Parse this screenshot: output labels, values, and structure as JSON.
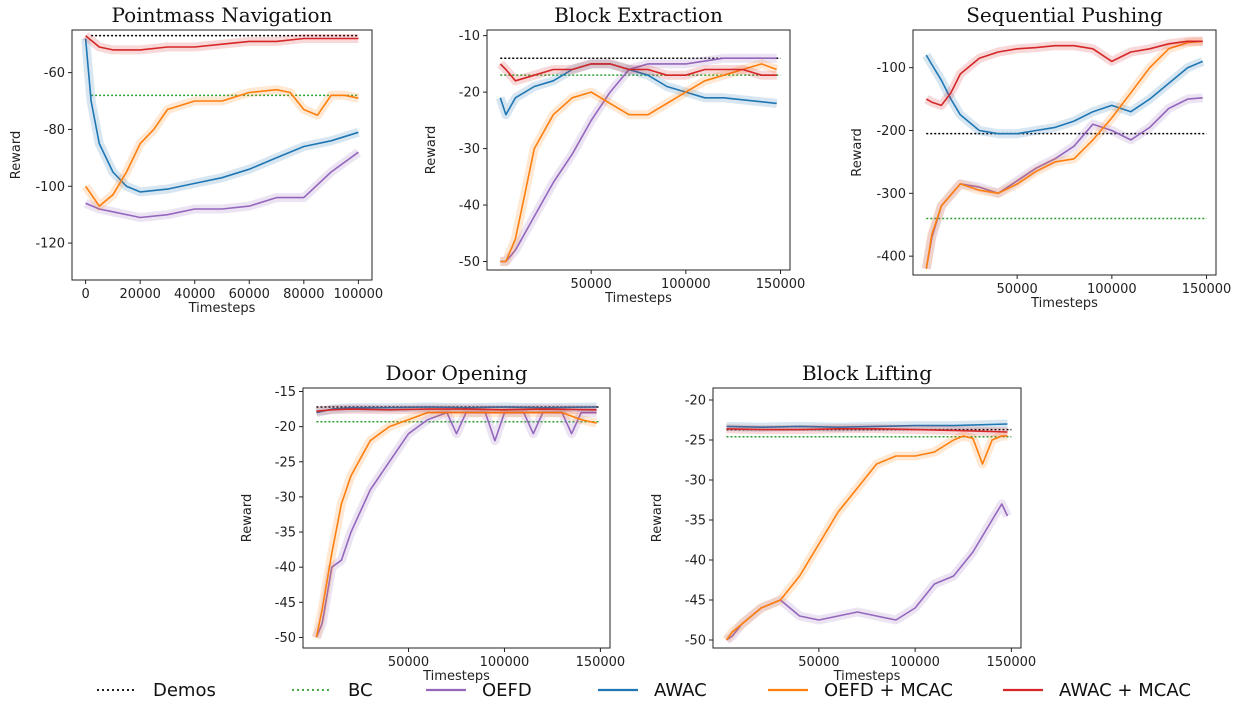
{
  "colors": {
    "Demos": "#000000",
    "BC": "#2ca02c",
    "OEFD": "#9467bd",
    "AWAC": "#1f77b4",
    "OEFD + MCAC": "#ff7f0e",
    "AWAC + MCAC": "#d62728"
  },
  "legend": {
    "position": "bottom",
    "items": [
      {
        "label": "Demos",
        "style": "dotted"
      },
      {
        "label": "BC",
        "style": "dotted"
      },
      {
        "label": "OEFD",
        "style": "solid"
      },
      {
        "label": "AWAC",
        "style": "solid"
      },
      {
        "label": "OEFD + MCAC",
        "style": "solid"
      },
      {
        "label": "AWAC + MCAC",
        "style": "solid"
      }
    ]
  },
  "chart_data": [
    {
      "type": "line",
      "title": "Pointmass Navigation",
      "xlabel": "Timesteps",
      "ylabel": "Reward",
      "xlim": [
        -5000,
        105000
      ],
      "ylim": [
        -133,
        -45
      ],
      "xticks": [
        0,
        20000,
        40000,
        60000,
        80000,
        100000
      ],
      "xticklabels": [
        "0",
        "20000",
        "40000",
        "60000",
        "80000",
        "100000"
      ],
      "yticks": [
        -60,
        -80,
        -100,
        -120
      ],
      "yticklabels": [
        "-60",
        "-80",
        "-100",
        "-120"
      ],
      "hlines": [
        {
          "name": "Demos",
          "y": -47
        },
        {
          "name": "BC",
          "y": -68
        }
      ],
      "series": [
        {
          "name": "OEFD",
          "x": [
            0,
            5000,
            10000,
            20000,
            30000,
            40000,
            50000,
            60000,
            70000,
            80000,
            90000,
            100000
          ],
          "y": [
            -106,
            -108,
            -109,
            -111,
            -110,
            -108,
            -108,
            -107,
            -104,
            -104,
            -95,
            -88
          ]
        },
        {
          "name": "AWAC",
          "x": [
            0,
            2000,
            5000,
            10000,
            15000,
            20000,
            30000,
            40000,
            50000,
            60000,
            70000,
            80000,
            90000,
            100000
          ],
          "y": [
            -48,
            -70,
            -85,
            -95,
            -100,
            -102,
            -101,
            -99,
            -97,
            -94,
            -90,
            -86,
            -84,
            -81
          ]
        },
        {
          "name": "OEFD + MCAC",
          "x": [
            0,
            5000,
            10000,
            15000,
            20000,
            25000,
            30000,
            40000,
            50000,
            60000,
            70000,
            75000,
            80000,
            85000,
            90000,
            95000,
            100000
          ],
          "y": [
            -100,
            -107,
            -103,
            -95,
            -85,
            -80,
            -73,
            -70,
            -70,
            -67,
            -66,
            -67,
            -73,
            -75,
            -68,
            -68,
            -69
          ]
        },
        {
          "name": "AWAC + MCAC",
          "x": [
            0,
            5000,
            10000,
            20000,
            30000,
            40000,
            50000,
            60000,
            70000,
            80000,
            90000,
            100000
          ],
          "y": [
            -47,
            -51,
            -52,
            -52,
            -51,
            -51,
            -50,
            -49,
            -49,
            -48,
            -48,
            -48
          ]
        }
      ]
    },
    {
      "type": "line",
      "title": "Block Extraction",
      "xlabel": "Timesteps",
      "ylabel": "Reward",
      "xlim": [
        -5000,
        155000
      ],
      "ylim": [
        -51.5,
        -9
      ],
      "xticks": [
        50000,
        100000,
        150000
      ],
      "xticklabels": [
        "50000",
        "100000",
        "150000"
      ],
      "yticks": [
        -10,
        -20,
        -30,
        -40,
        -50
      ],
      "yticklabels": [
        "-10",
        "-20",
        "-30",
        "-40",
        "-50"
      ],
      "hlines": [
        {
          "name": "Demos",
          "y": -14
        },
        {
          "name": "BC",
          "y": -17
        }
      ],
      "series": [
        {
          "name": "OEFD",
          "x": [
            2000,
            5000,
            10000,
            20000,
            30000,
            40000,
            50000,
            60000,
            70000,
            80000,
            90000,
            100000,
            120000,
            148000
          ],
          "y": [
            -50,
            -50,
            -48,
            -42,
            -36,
            -31,
            -25,
            -20,
            -16,
            -15,
            -15,
            -15,
            -14,
            -14
          ]
        },
        {
          "name": "AWAC",
          "x": [
            2000,
            5000,
            10000,
            20000,
            30000,
            40000,
            50000,
            60000,
            70000,
            80000,
            90000,
            100000,
            110000,
            120000,
            148000
          ],
          "y": [
            -21,
            -24,
            -21,
            -19,
            -18,
            -16,
            -15,
            -15,
            -16,
            -17,
            -19,
            -20,
            -21,
            -21,
            -22
          ]
        },
        {
          "name": "OEFD + MCAC",
          "x": [
            2000,
            5000,
            10000,
            15000,
            20000,
            30000,
            40000,
            50000,
            60000,
            70000,
            80000,
            90000,
            100000,
            110000,
            120000,
            130000,
            140000,
            148000
          ],
          "y": [
            -50,
            -50,
            -46,
            -38,
            -30,
            -24,
            -21,
            -20,
            -22,
            -24,
            -24,
            -22,
            -20,
            -18,
            -17,
            -16,
            -15,
            -16
          ]
        },
        {
          "name": "AWAC + MCAC",
          "x": [
            2000,
            5000,
            10000,
            20000,
            30000,
            40000,
            50000,
            60000,
            70000,
            80000,
            90000,
            100000,
            110000,
            120000,
            130000,
            140000,
            148000
          ],
          "y": [
            -15,
            -16,
            -18,
            -17,
            -16,
            -16,
            -15,
            -15,
            -16,
            -16,
            -17,
            -17,
            -16,
            -16,
            -16,
            -17,
            -17
          ]
        }
      ]
    },
    {
      "type": "line",
      "title": "Sequential Pushing",
      "xlabel": "Timesteps",
      "ylabel": "Reward",
      "xlim": [
        -5000,
        155000
      ],
      "ylim": [
        -430,
        -40
      ],
      "xticks": [
        50000,
        100000,
        150000
      ],
      "xticklabels": [
        "50000",
        "100000",
        "150000"
      ],
      "yticks": [
        -100,
        -200,
        -300,
        -400
      ],
      "yticklabels": [
        "-100",
        "-200",
        "-300",
        "-400"
      ],
      "hlines": [
        {
          "name": "Demos",
          "y": -205
        },
        {
          "name": "BC",
          "y": -340
        }
      ],
      "series": [
        {
          "name": "OEFD",
          "x": [
            2000,
            5000,
            10000,
            20000,
            30000,
            40000,
            50000,
            60000,
            70000,
            80000,
            90000,
            100000,
            110000,
            120000,
            130000,
            140000,
            148000
          ],
          "y": [
            -420,
            -370,
            -320,
            -285,
            -290,
            -300,
            -280,
            -260,
            -245,
            -225,
            -190,
            -200,
            -215,
            -195,
            -165,
            -150,
            -148
          ]
        },
        {
          "name": "AWAC",
          "x": [
            2000,
            5000,
            10000,
            15000,
            20000,
            30000,
            40000,
            50000,
            60000,
            70000,
            80000,
            90000,
            100000,
            110000,
            120000,
            130000,
            140000,
            148000
          ],
          "y": [
            -80,
            -95,
            -120,
            -150,
            -175,
            -200,
            -205,
            -205,
            -200,
            -195,
            -185,
            -170,
            -160,
            -170,
            -150,
            -125,
            -100,
            -90
          ]
        },
        {
          "name": "OEFD + MCAC",
          "x": [
            2000,
            5000,
            10000,
            20000,
            30000,
            40000,
            50000,
            60000,
            70000,
            80000,
            90000,
            100000,
            110000,
            120000,
            130000,
            140000,
            148000
          ],
          "y": [
            -420,
            -365,
            -320,
            -285,
            -295,
            -300,
            -285,
            -265,
            -250,
            -245,
            -215,
            -180,
            -140,
            -100,
            -70,
            -60,
            -58
          ]
        },
        {
          "name": "AWAC + MCAC",
          "x": [
            2000,
            5000,
            10000,
            15000,
            20000,
            30000,
            40000,
            50000,
            60000,
            70000,
            80000,
            90000,
            100000,
            110000,
            120000,
            130000,
            140000,
            148000
          ],
          "y": [
            -150,
            -155,
            -160,
            -140,
            -110,
            -85,
            -75,
            -70,
            -68,
            -65,
            -65,
            -70,
            -90,
            -75,
            -70,
            -62,
            -58,
            -58
          ]
        }
      ]
    },
    {
      "type": "line",
      "title": "Door Opening",
      "xlabel": "Timesteps",
      "ylabel": "Reward",
      "xlim": [
        -5000,
        155000
      ],
      "ylim": [
        -51.5,
        -14.5
      ],
      "xticks": [
        50000,
        100000,
        150000
      ],
      "xticklabels": [
        "50000",
        "100000",
        "150000"
      ],
      "yticks": [
        -15,
        -20,
        -25,
        -30,
        -35,
        -40,
        -45,
        -50
      ],
      "yticklabels": [
        "-15",
        "-20",
        "-25",
        "-30",
        "-35",
        "-40",
        "-45",
        "-50"
      ],
      "hlines": [
        {
          "name": "Demos",
          "y": -17.2
        },
        {
          "name": "BC",
          "y": -19.3
        }
      ],
      "series": [
        {
          "name": "OEFD",
          "x": [
            2000,
            5000,
            10000,
            15000,
            20000,
            30000,
            40000,
            50000,
            60000,
            70000,
            75000,
            80000,
            90000,
            95000,
            100000,
            110000,
            115000,
            120000,
            130000,
            135000,
            140000,
            148000
          ],
          "y": [
            -50,
            -48,
            -40,
            -39,
            -35,
            -29,
            -25,
            -21,
            -19,
            -18,
            -21,
            -18,
            -18,
            -22,
            -18,
            -18,
            -21,
            -18,
            -18,
            -21,
            -18,
            -18
          ]
        },
        {
          "name": "AWAC",
          "x": [
            2000,
            10000,
            20000,
            40000,
            60000,
            80000,
            100000,
            120000,
            148000
          ],
          "y": [
            -18,
            -17.5,
            -17.3,
            -17.3,
            -17.2,
            -17.3,
            -17.2,
            -17.3,
            -17.2
          ]
        },
        {
          "name": "OEFD + MCAC",
          "x": [
            2000,
            5000,
            10000,
            15000,
            20000,
            30000,
            40000,
            50000,
            60000,
            70000,
            80000,
            90000,
            100000,
            110000,
            120000,
            130000,
            140000,
            148000
          ],
          "y": [
            -50,
            -46,
            -38,
            -31,
            -27,
            -22,
            -20,
            -19,
            -18,
            -18,
            -18,
            -18,
            -18,
            -18,
            -18,
            -18,
            -19,
            -19.5
          ]
        },
        {
          "name": "AWAC + MCAC",
          "x": [
            2000,
            10000,
            20000,
            40000,
            60000,
            80000,
            100000,
            120000,
            148000
          ],
          "y": [
            -17.8,
            -17.6,
            -17.5,
            -17.6,
            -17.5,
            -17.5,
            -17.6,
            -17.5,
            -17.6
          ]
        }
      ]
    },
    {
      "type": "line",
      "title": "Block Lifting",
      "xlabel": "Timesteps",
      "ylabel": "Reward",
      "xlim": [
        -5000,
        155000
      ],
      "ylim": [
        -51,
        -18.5
      ],
      "xticks": [
        50000,
        100000,
        150000
      ],
      "xticklabels": [
        "50000",
        "100000",
        "150000"
      ],
      "yticks": [
        -20,
        -25,
        -30,
        -35,
        -40,
        -45,
        -50
      ],
      "yticklabels": [
        "-20",
        "-25",
        "-30",
        "-35",
        "-40",
        "-45",
        "-50"
      ],
      "hlines": [
        {
          "name": "Demos",
          "y": -23.7
        },
        {
          "name": "BC",
          "y": -24.6
        }
      ],
      "series": [
        {
          "name": "OEFD",
          "x": [
            2000,
            5000,
            10000,
            20000,
            30000,
            40000,
            50000,
            60000,
            70000,
            80000,
            90000,
            100000,
            110000,
            120000,
            130000,
            140000,
            145000,
            148000
          ],
          "y": [
            -50,
            -49.5,
            -48,
            -46,
            -45,
            -47,
            -47.5,
            -47,
            -46.5,
            -47,
            -47.5,
            -46,
            -43,
            -42,
            -39,
            -35,
            -33,
            -34.5
          ]
        },
        {
          "name": "AWAC",
          "x": [
            2000,
            20000,
            40000,
            60000,
            80000,
            100000,
            120000,
            148000
          ],
          "y": [
            -23.3,
            -23.4,
            -23.3,
            -23.4,
            -23.3,
            -23.2,
            -23.2,
            -23
          ]
        },
        {
          "name": "OEFD + MCAC",
          "x": [
            2000,
            5000,
            10000,
            20000,
            30000,
            40000,
            50000,
            60000,
            70000,
            80000,
            90000,
            100000,
            110000,
            120000,
            125000,
            130000,
            135000,
            140000,
            145000,
            148000
          ],
          "y": [
            -50,
            -49,
            -48,
            -46,
            -45,
            -42,
            -38,
            -34,
            -31,
            -28,
            -27,
            -27,
            -26.5,
            -25,
            -24.5,
            -24.8,
            -28,
            -25,
            -24.5,
            -24.5
          ]
        },
        {
          "name": "AWAC + MCAC",
          "x": [
            2000,
            20000,
            40000,
            60000,
            80000,
            100000,
            120000,
            148000
          ],
          "y": [
            -23.6,
            -23.7,
            -23.7,
            -23.6,
            -23.6,
            -23.7,
            -23.8,
            -24
          ]
        }
      ]
    }
  ]
}
